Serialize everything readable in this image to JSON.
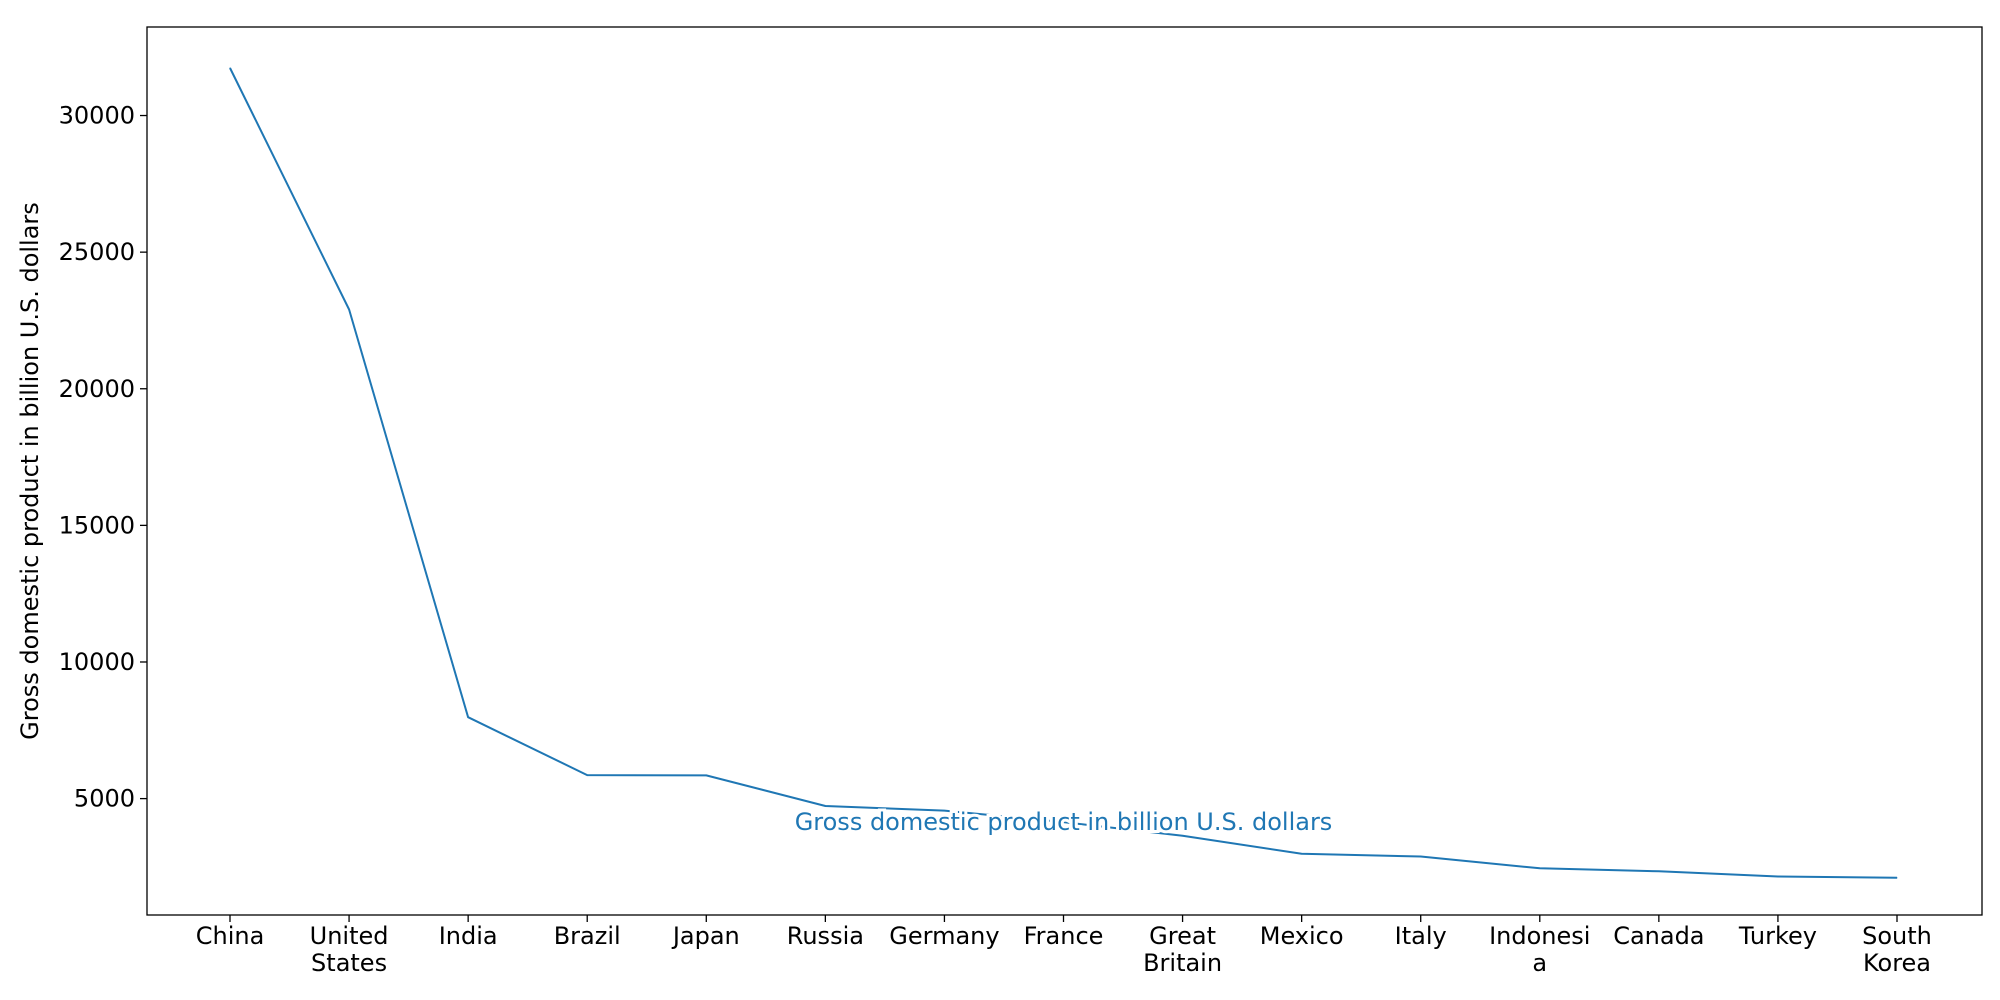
{
  "chart_data": {
    "type": "line",
    "title": "",
    "xlabel": "",
    "ylabel": "Gross domestic product in billion U.S. dollars",
    "categories": [
      [
        "China"
      ],
      [
        "United",
        "States"
      ],
      [
        "India"
      ],
      [
        "Brazil"
      ],
      [
        "Japan"
      ],
      [
        "Russia"
      ],
      [
        "Germany"
      ],
      [
        "France"
      ],
      [
        "Great",
        "Britain"
      ],
      [
        "Mexico"
      ],
      [
        "Italy"
      ],
      [
        "Indonesi",
        "a"
      ],
      [
        "Canada"
      ],
      [
        "Turkey"
      ],
      [
        "South",
        "Korea"
      ]
    ],
    "series": [
      {
        "name": "Gross domestic product in billion U.S. dollars",
        "values": [
          31740,
          22900,
          7980,
          5860,
          5850,
          4730,
          4560,
          4140,
          3640,
          2980,
          2880,
          2450,
          2340,
          2150,
          2100
        ],
        "color": "#1f77b4"
      }
    ],
    "ylim": [
      740,
      33240
    ],
    "yticks": [
      5000,
      10000,
      15000,
      20000,
      25000,
      30000
    ],
    "grid": false,
    "legend": "series label drawn inline on the line"
  }
}
